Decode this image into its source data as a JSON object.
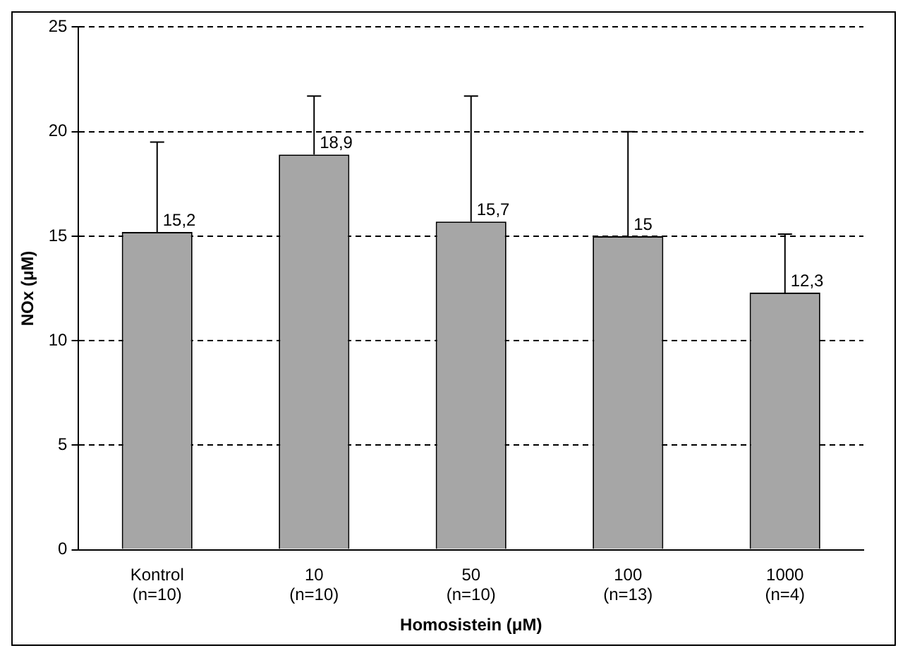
{
  "chart_data": {
    "type": "bar",
    "xlabel": "Homosistein (μM)",
    "ylabel": "NOx (μM)",
    "categories": [
      "Kontrol\n(n=10)",
      "10\n(n=10)",
      "50\n(n=10)",
      "100\n(n=13)",
      "1000\n(n=4)"
    ],
    "values": [
      15.2,
      18.9,
      15.7,
      15,
      12.3
    ],
    "value_labels": [
      "15,2",
      "18,9",
      "15,7",
      "15",
      "12,3"
    ],
    "errors": [
      [
        15.2,
        19.5
      ],
      [
        18.9,
        21.7
      ],
      [
        15.7,
        21.7
      ],
      [
        15,
        20
      ],
      [
        12.3,
        15.1
      ]
    ],
    "color": "#a6a6a6",
    "ylim": [
      0,
      25
    ],
    "yticks": [
      0,
      5,
      10,
      15,
      20,
      25
    ],
    "grid": "y",
    "legend": false
  }
}
